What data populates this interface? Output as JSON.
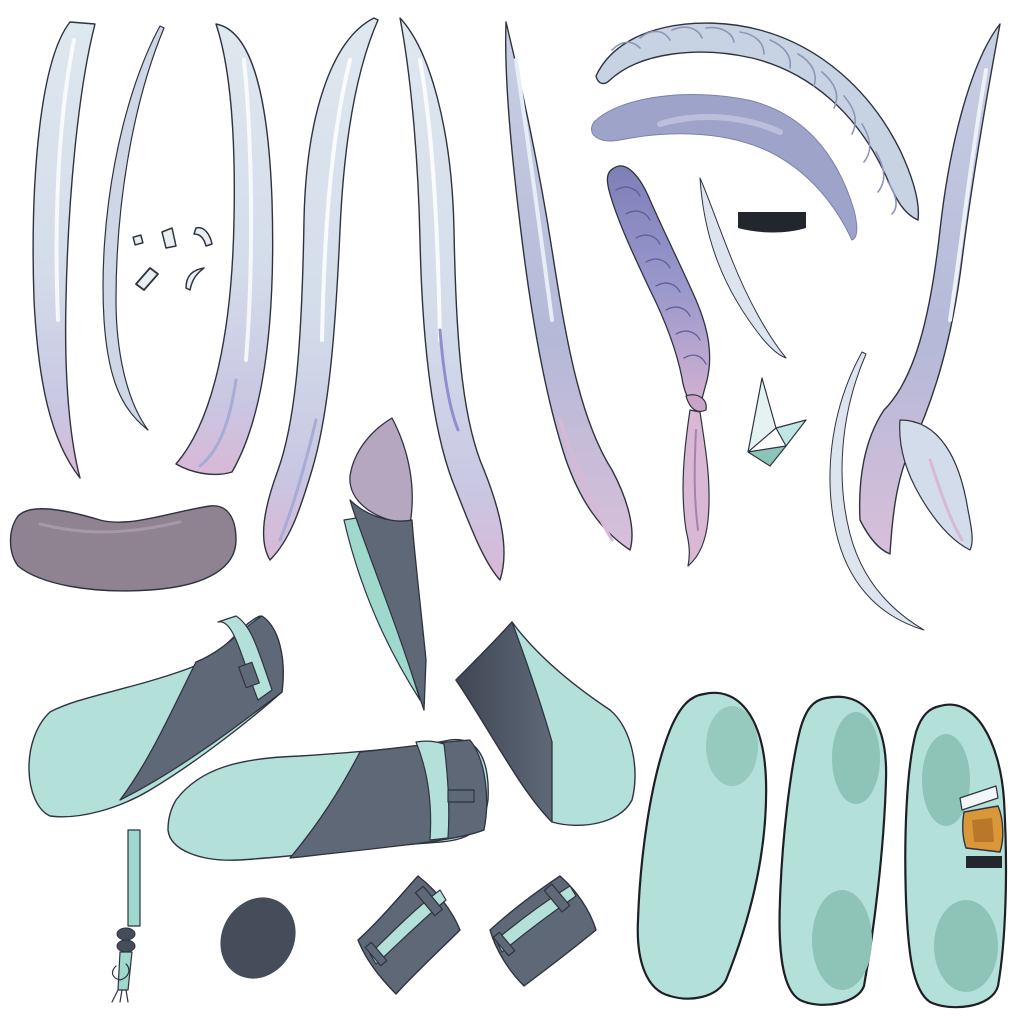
{
  "canvas": {
    "background": "#ffffff"
  },
  "palette": {
    "hair_base": "#dce6ee",
    "hair_shadow": "#b6bdd8",
    "hair_deep": "#9ea3c9",
    "hair_tip": "#d9b8d6",
    "hair_accent": "#8f8fd0",
    "outline": "#2f3340",
    "mint": "#b3e0d8",
    "mint_shade": "#8ec4b8",
    "slate": "#5e6877",
    "slate_dark": "#454d5a",
    "mauve": "#8f8291",
    "lilac": "#b5a7c0",
    "amber": "#d9973a",
    "black": "#24262d"
  },
  "parts": [
    {
      "id": "hair-lock-left",
      "icon": "hair-lock-icon"
    },
    {
      "id": "hair-lock-inner-curve",
      "icon": "hair-curve-icon"
    },
    {
      "id": "hair-ornament-clips",
      "icon": "hair-clip-icon"
    },
    {
      "id": "hair-lock-long-left",
      "icon": "hair-lock-icon"
    },
    {
      "id": "hair-lock-long-right",
      "icon": "hair-lock-icon"
    },
    {
      "id": "hair-lock-side",
      "icon": "hair-lock-icon"
    },
    {
      "id": "braid-crown",
      "icon": "braid-icon"
    },
    {
      "id": "bangs-shadow-band",
      "icon": "hair-band-icon"
    },
    {
      "id": "braid-small",
      "icon": "braid-icon"
    },
    {
      "id": "hair-strand-thin",
      "icon": "hair-strand-icon"
    },
    {
      "id": "black-band",
      "icon": "band-icon"
    },
    {
      "id": "crystal-ornament",
      "icon": "crystal-icon"
    },
    {
      "id": "hair-lock-far-right",
      "icon": "hair-lock-icon"
    },
    {
      "id": "hair-strand-arc",
      "icon": "hair-strand-icon"
    },
    {
      "id": "collar-piece",
      "icon": "collar-icon"
    },
    {
      "id": "scarf-tail",
      "icon": "scarf-icon"
    },
    {
      "id": "sleeve-left",
      "icon": "sleeve-icon"
    },
    {
      "id": "sleeve-right",
      "icon": "sleeve-icon"
    },
    {
      "id": "sleeve-cut",
      "icon": "sleeve-icon"
    },
    {
      "id": "shoe-sole-plain",
      "icon": "shoe-sole-icon"
    },
    {
      "id": "shoe-sole-shaded",
      "icon": "shoe-sole-icon"
    },
    {
      "id": "shoe-top-buckle",
      "icon": "shoe-buckle-icon"
    },
    {
      "id": "tassel-cord",
      "icon": "tassel-icon"
    },
    {
      "id": "dark-oval-patch",
      "icon": "patch-icon"
    },
    {
      "id": "cuff-band-left",
      "icon": "cuff-icon"
    },
    {
      "id": "cuff-band-right",
      "icon": "cuff-icon"
    }
  ]
}
